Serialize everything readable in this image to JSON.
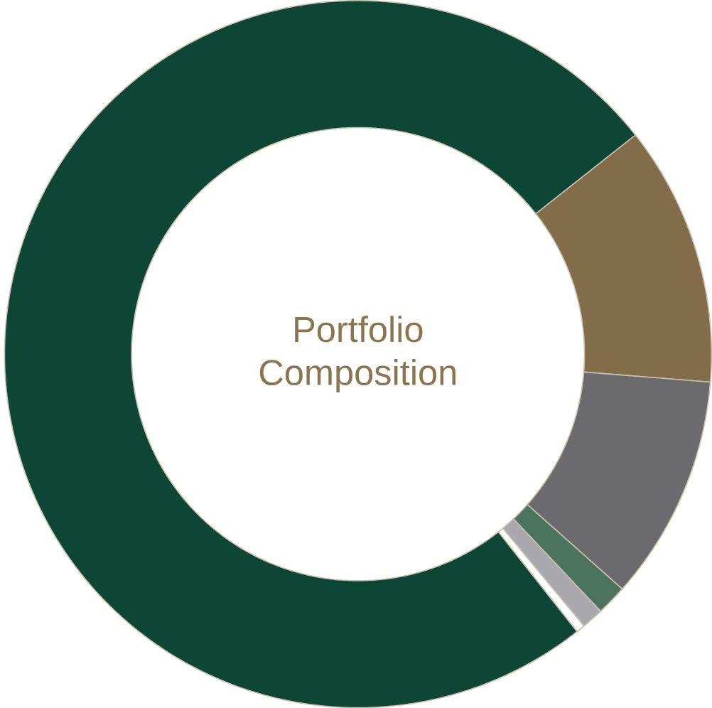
{
  "chart_data": {
    "type": "donut",
    "title": "Portfolio Composition",
    "categories": [
      null,
      null,
      null,
      null,
      null,
      null
    ],
    "values": [
      11.9,
      10.3,
      1.4,
      1.0,
      0.4,
      75.0
    ],
    "colors": [
      "#826c4a",
      "#6b6a6c",
      "#4b735f",
      "#a9a8ad",
      "#ffffff",
      "#0d4634"
    ]
  }
}
